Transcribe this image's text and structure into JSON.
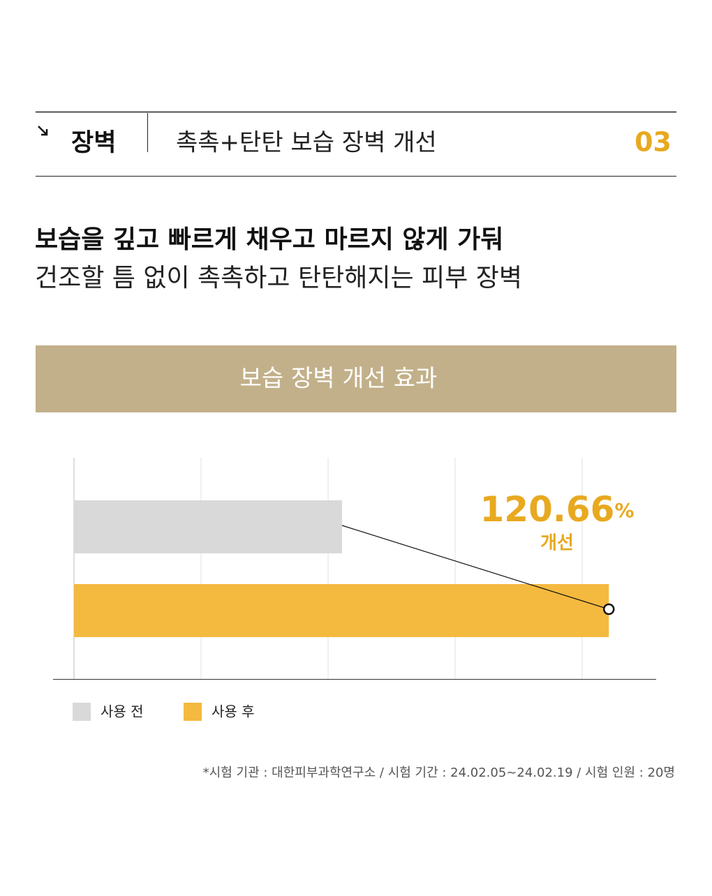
{
  "header": {
    "category": "장벽",
    "title": "촉촉+탄탄 보습 장벽 개선",
    "number": "03"
  },
  "headline": {
    "line1": "보습을 깊고 빠르게 채우고 마르지 않게 가둬",
    "line2": "건조할 틈 없이 촉촉하고 탄탄해지는 피부 장벽"
  },
  "chart_data": {
    "type": "bar",
    "orientation": "horizontal",
    "title": "보습 장벽 개선 효과",
    "series": [
      {
        "name": "사용 전",
        "color": "#d9d9d9",
        "values": [
          2.11
        ]
      },
      {
        "name": "사용 후",
        "color": "#f4b93f",
        "values": [
          4.21
        ]
      }
    ],
    "xlim": [
      0,
      4.5
    ],
    "xticks": [
      0,
      1,
      2,
      3,
      4
    ],
    "grid": true,
    "annotation": {
      "value": "120.66",
      "unit": "%",
      "label": "개선"
    }
  },
  "footnote": "*시험 기관 : 대한피부과학연구소 / 시험 기간 : 24.02.05~24.02.19 / 시험 인원 : 20명"
}
